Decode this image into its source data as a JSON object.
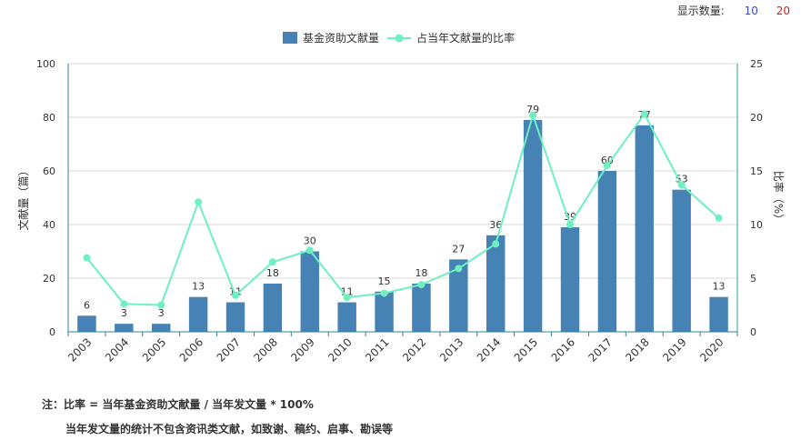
{
  "display_count": {
    "label": "显示数量:",
    "options": [
      "10",
      "20"
    ]
  },
  "chart_data": {
    "type": "bar+line",
    "categories": [
      "2003",
      "2004",
      "2005",
      "2006",
      "2007",
      "2008",
      "2009",
      "2010",
      "2011",
      "2012",
      "2013",
      "2014",
      "2015",
      "2016",
      "2017",
      "2018",
      "2019",
      "2020"
    ],
    "series": [
      {
        "name": "基金资助文献量",
        "type": "bar",
        "axis": "left",
        "color": "#4682b4",
        "values": [
          6,
          3,
          3,
          13,
          11,
          18,
          30,
          11,
          15,
          18,
          27,
          36,
          79,
          39,
          60,
          77,
          53,
          13
        ]
      },
      {
        "name": "占当年文献量的比率",
        "type": "line",
        "axis": "right",
        "color": "#6ef0c0",
        "values": [
          6.9,
          2.6,
          2.5,
          12.1,
          3.4,
          6.5,
          7.6,
          3.2,
          3.6,
          4.4,
          5.9,
          8.2,
          20.2,
          10.0,
          15.5,
          20.3,
          13.7,
          10.6
        ]
      }
    ],
    "ylabel_left": "文献量（篇）",
    "ylabel_right": "比率（%）",
    "ylim_left": [
      0,
      100
    ],
    "ylim_right": [
      0,
      25
    ],
    "yticks_left": [
      "0",
      "20",
      "40",
      "60",
      "80",
      "100"
    ],
    "yticks_right": [
      "0",
      "5",
      "10",
      "15",
      "20",
      "25"
    ],
    "grid": true,
    "legend_position": "top-center"
  },
  "notes": {
    "line1": "注：比率 = 当年基金资助文献量 / 当年发文量 * 100%",
    "line2": "当年发文量的统计不包含资讯类文献，如致谢、稿约、启事、勘误等"
  }
}
